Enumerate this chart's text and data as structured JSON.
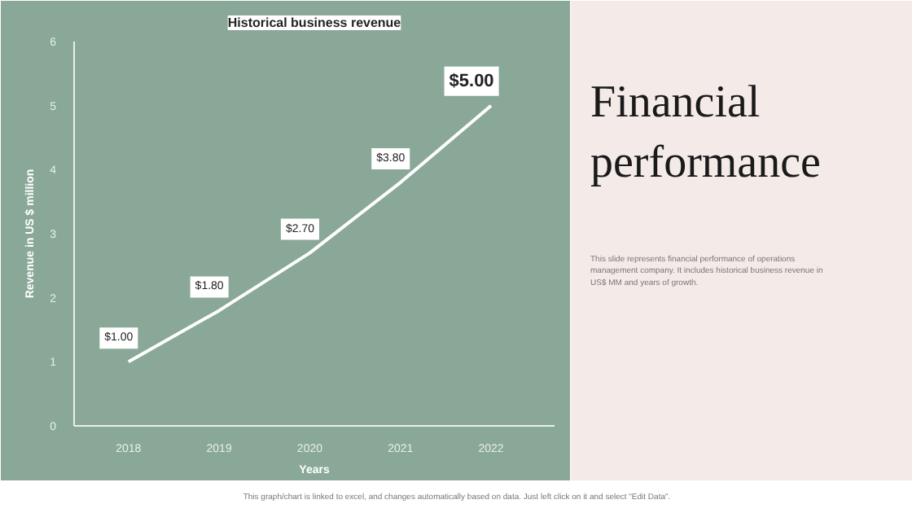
{
  "chart_data": {
    "type": "line",
    "title": "Historical business revenue",
    "xlabel": "Years",
    "ylabel": "Revenue in US $ million",
    "categories": [
      "2018",
      "2019",
      "2020",
      "2021",
      "2022"
    ],
    "series": [
      {
        "color": "#ffffff",
        "values": [
          1.0,
          1.8,
          2.7,
          3.8,
          5.0
        ],
        "value_labels": [
          "$1.00",
          "$1.80",
          "$2.70",
          "$3.80",
          "$5.00"
        ]
      }
    ],
    "ylim": [
      0,
      6
    ],
    "yticks": [
      0,
      1,
      2,
      3,
      4,
      5,
      6
    ],
    "grid": false,
    "marker": "none",
    "line_style": "solid",
    "annotations": [
      "Financial performance",
      "This slide represents financial performance of operations management company. It includes historical business revenue in US$ MM and years of growth.",
      "This graph/chart is linked to excel, and changes automatically based on data. Just left click on it and select \"Edit Data\"."
    ]
  }
}
